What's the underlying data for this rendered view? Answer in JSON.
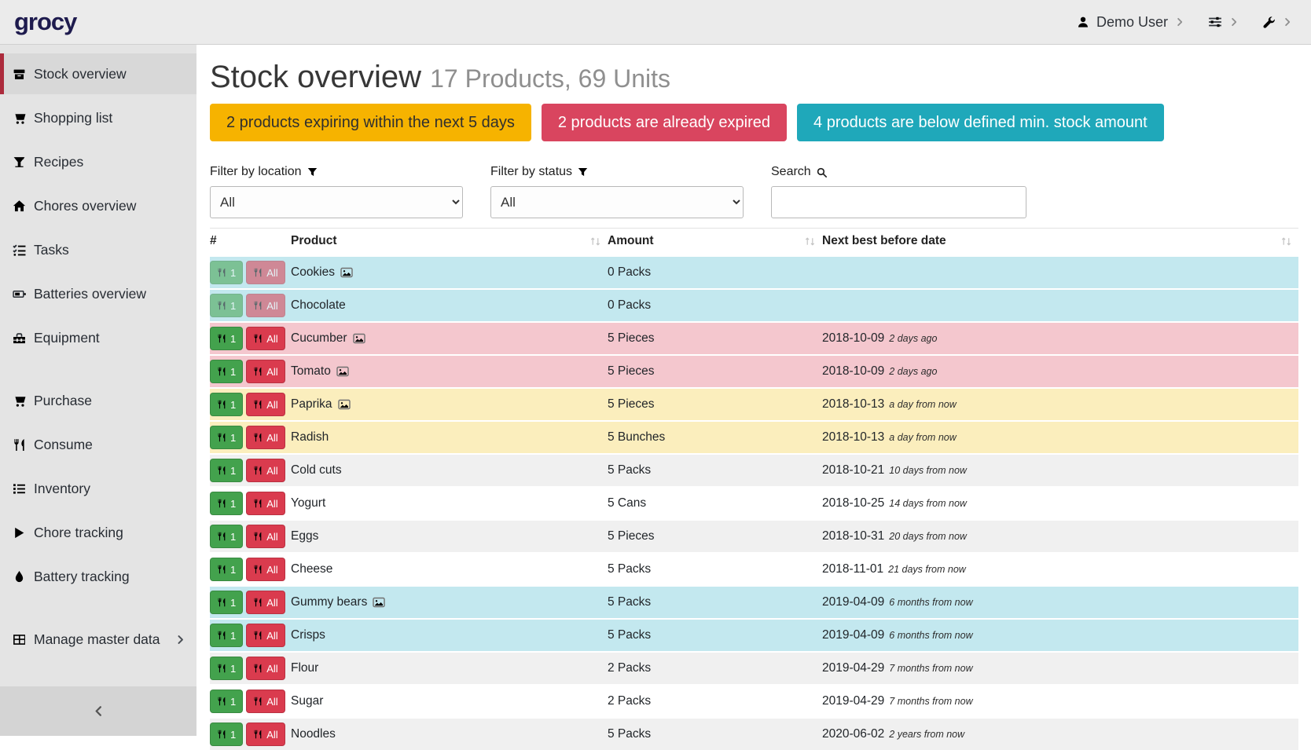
{
  "navbar": {
    "logo": "grocy",
    "user": "Demo User"
  },
  "sidebar": {
    "items": [
      {
        "label": "Stock overview",
        "icon": "archive-box-icon",
        "active": true
      },
      {
        "label": "Shopping list",
        "icon": "shopping-cart-icon"
      },
      {
        "label": "Recipes",
        "icon": "cocktail-glass-icon"
      },
      {
        "label": "Chores overview",
        "icon": "home-icon"
      },
      {
        "label": "Tasks",
        "icon": "tasks-icon"
      },
      {
        "label": "Batteries overview",
        "icon": "battery-icon"
      },
      {
        "label": "Equipment",
        "icon": "toolbox-icon"
      },
      {
        "label": "Purchase",
        "icon": "shopping-cart-icon",
        "gap_before": true
      },
      {
        "label": "Consume",
        "icon": "utensils-icon"
      },
      {
        "label": "Inventory",
        "icon": "list-icon"
      },
      {
        "label": "Chore tracking",
        "icon": "play-icon"
      },
      {
        "label": "Battery tracking",
        "icon": "tint-icon"
      },
      {
        "label": "Manage master data",
        "icon": "table-icon",
        "gap_before": true,
        "chevron": true
      }
    ]
  },
  "header": {
    "title": "Stock overview",
    "subtitle": "17 Products, 69 Units"
  },
  "alerts": [
    {
      "label": "2 products expiring within the next 5 days",
      "type": "warning"
    },
    {
      "label": "2 products are already expired",
      "type": "danger"
    },
    {
      "label": "4 products are below defined min. stock amount",
      "type": "info"
    }
  ],
  "filters": {
    "location_label": "Filter by location",
    "location_value": "All",
    "status_label": "Filter by status",
    "status_value": "All",
    "search_label": "Search"
  },
  "table": {
    "columns": [
      "#",
      "Product",
      "Amount",
      "Next best before date"
    ],
    "consume_one_label": "1",
    "consume_all_label": "All",
    "rows": [
      {
        "product": "Cookies",
        "has_image": true,
        "amount": "0 Packs",
        "date": "",
        "date_rel": "",
        "status": "info",
        "disabled": true
      },
      {
        "product": "Chocolate",
        "has_image": false,
        "amount": "0 Packs",
        "date": "",
        "date_rel": "",
        "status": "info",
        "disabled": true
      },
      {
        "product": "Cucumber",
        "has_image": true,
        "amount": "5 Pieces",
        "date": "2018-10-09",
        "date_rel": "2 days ago",
        "status": "danger",
        "disabled": false
      },
      {
        "product": "Tomato",
        "has_image": true,
        "amount": "5 Pieces",
        "date": "2018-10-09",
        "date_rel": "2 days ago",
        "status": "danger",
        "disabled": false
      },
      {
        "product": "Paprika",
        "has_image": true,
        "amount": "5 Pieces",
        "date": "2018-10-13",
        "date_rel": "a day from now",
        "status": "warning",
        "disabled": false
      },
      {
        "product": "Radish",
        "has_image": false,
        "amount": "5 Bunches",
        "date": "2018-10-13",
        "date_rel": "a day from now",
        "status": "warning",
        "disabled": false
      },
      {
        "product": "Cold cuts",
        "has_image": false,
        "amount": "5 Packs",
        "date": "2018-10-21",
        "date_rel": "10 days from now",
        "status": "stripe",
        "disabled": false
      },
      {
        "product": "Yogurt",
        "has_image": false,
        "amount": "5 Cans",
        "date": "2018-10-25",
        "date_rel": "14 days from now",
        "status": "plain",
        "disabled": false
      },
      {
        "product": "Eggs",
        "has_image": false,
        "amount": "5 Pieces",
        "date": "2018-10-31",
        "date_rel": "20 days from now",
        "status": "stripe",
        "disabled": false
      },
      {
        "product": "Cheese",
        "has_image": false,
        "amount": "5 Packs",
        "date": "2018-11-01",
        "date_rel": "21 days from now",
        "status": "plain",
        "disabled": false
      },
      {
        "product": "Gummy bears",
        "has_image": true,
        "amount": "5 Packs",
        "date": "2019-04-09",
        "date_rel": "6 months from now",
        "status": "info",
        "disabled": false
      },
      {
        "product": "Crisps",
        "has_image": false,
        "amount": "5 Packs",
        "date": "2019-04-09",
        "date_rel": "6 months from now",
        "status": "info",
        "disabled": false
      },
      {
        "product": "Flour",
        "has_image": false,
        "amount": "2 Packs",
        "date": "2019-04-29",
        "date_rel": "7 months from now",
        "status": "stripe",
        "disabled": false
      },
      {
        "product": "Sugar",
        "has_image": false,
        "amount": "2 Packs",
        "date": "2019-04-29",
        "date_rel": "7 months from now",
        "status": "plain",
        "disabled": false
      },
      {
        "product": "Noodles",
        "has_image": false,
        "amount": "5 Packs",
        "date": "2020-06-02",
        "date_rel": "2 years from now",
        "status": "stripe",
        "disabled": false
      }
    ]
  },
  "colors": {
    "logo_color": "#1e1b4e",
    "accent_red": "#ac2b3c",
    "warning_bg": "#f6b300",
    "warning_text": "#2f2f2f",
    "danger_bg": "#d9455f",
    "info_bg": "#1fa8ba",
    "consume_one_bg": "#43a24d",
    "consume_all_bg": "#da3b4e",
    "row_info": "#c3e8ef",
    "row_danger": "#f4c7ce",
    "row_warning": "#fbeebd",
    "row_stripe": "#f0f0f0",
    "row_plain": "#ffffff"
  }
}
